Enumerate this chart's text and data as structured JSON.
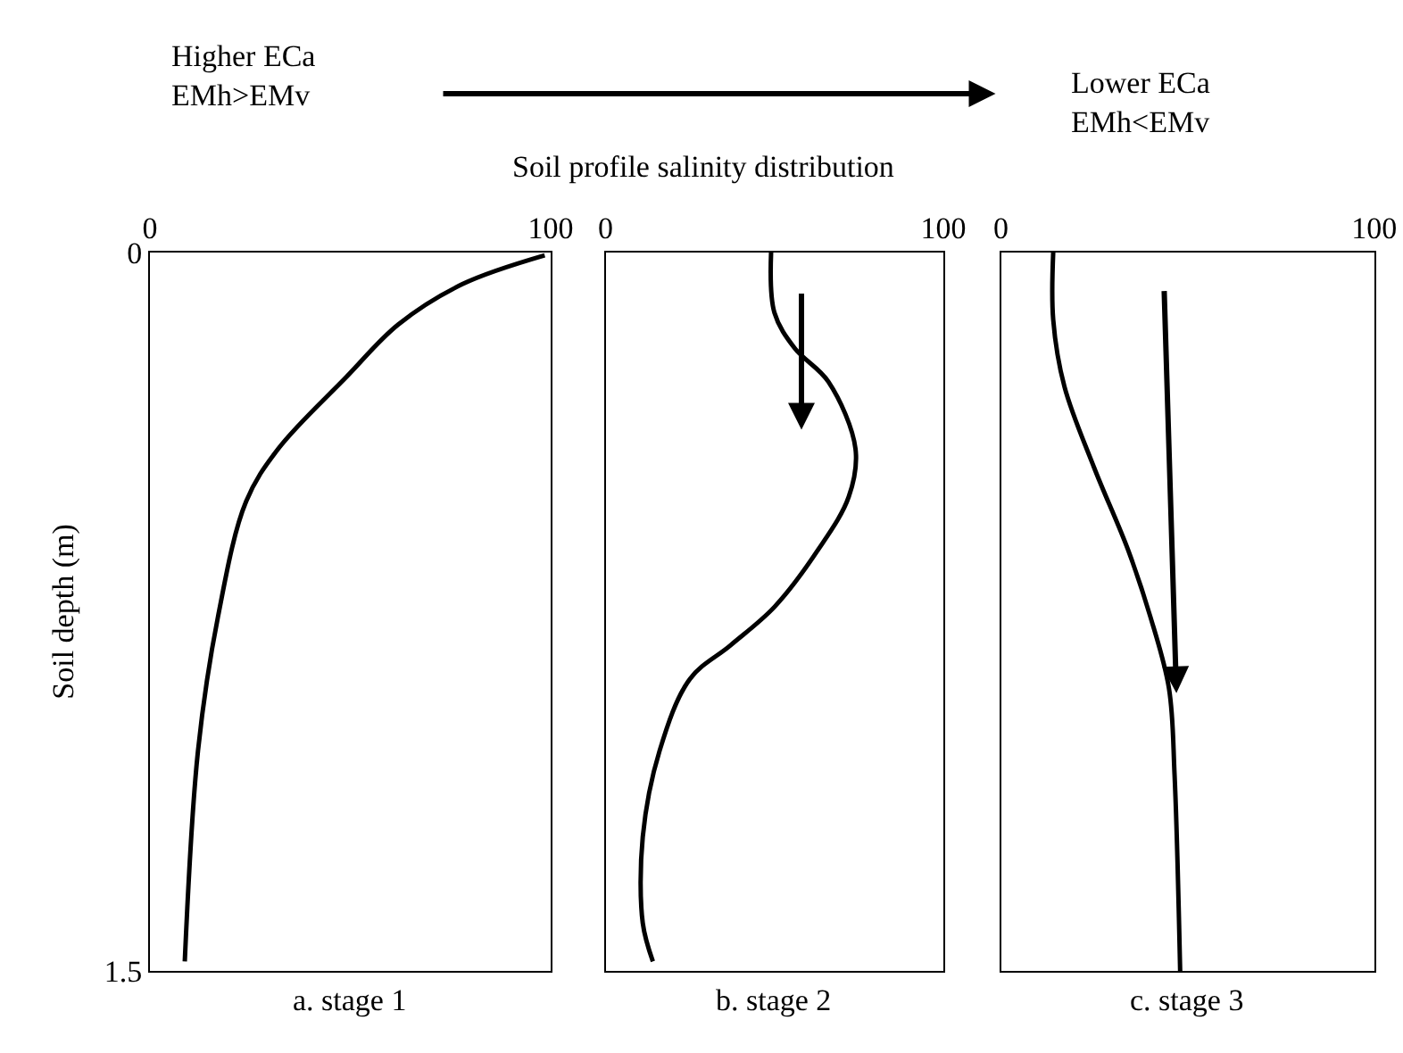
{
  "chart_data": [
    {
      "type": "line",
      "xlabel": "a. stage 1",
      "ylabel": "Soil depth (m)",
      "annotations": [
        "Higher ECa\nEMh>EMv",
        "Lower ECa\nEMh<EMv"
      ],
      "series": [
        {
          "color": "#000000",
          "x": [
            98.5,
            78,
            62,
            49,
            32,
            24,
            17,
            12,
            8.7
          ],
          "values": [
            0.006,
            0.066,
            0.15,
            0.26,
            0.41,
            0.52,
            0.76,
            1.04,
            1.48
          ]
        }
      ],
      "xlim": [
        0,
        100
      ],
      "xticks": [
        0,
        100
      ],
      "ylim": [
        1.5,
        0
      ],
      "yticks": [
        0,
        1.5
      ],
      "marker": "none",
      "line_style": "solid"
    },
    {
      "type": "line",
      "title": "Soil profile salinity distribution",
      "xlabel": "b. stage 2",
      "series": [
        {
          "color": "#000000",
          "x": [
            49,
            50,
            56,
            66,
            74,
            72,
            63,
            50,
            37,
            25,
            16,
            11,
            11,
            14
          ],
          "values": [
            0,
            0.126,
            0.2,
            0.27,
            0.41,
            0.51,
            0.62,
            0.74,
            0.82,
            0.89,
            1.04,
            1.22,
            1.4,
            1.48
          ]
        }
      ],
      "xlim": [
        0,
        100
      ],
      "xticks": [
        0,
        100
      ],
      "ylim": [
        1.5,
        0
      ],
      "tick_labels": "x",
      "marker": "none",
      "line_style": "solid"
    },
    {
      "type": "line",
      "xlabel": "c. stage 3",
      "series": [
        {
          "color": "#000000",
          "x": [
            14,
            14,
            17,
            25,
            34,
            40,
            45,
            46.5,
            48
          ],
          "values": [
            0,
            0.14,
            0.28,
            0.45,
            0.62,
            0.76,
            0.91,
            1.09,
            1.5
          ]
        }
      ],
      "xlim": [
        0,
        100
      ],
      "xticks": [
        0,
        100
      ],
      "ylim": [
        1.5,
        0
      ],
      "tick_labels": "x",
      "marker": "none",
      "line_style": "solid"
    }
  ]
}
